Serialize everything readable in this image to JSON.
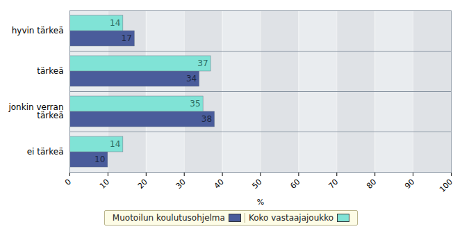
{
  "chart_data": {
    "type": "bar",
    "orientation": "horizontal",
    "categories": [
      "hyvin tärkeä",
      "tärkeä",
      "jonkin verran tärkeä",
      "ei tärkeä"
    ],
    "series": [
      {
        "name": "Muotoilun koulutusohjelma",
        "color": "#4a5c9b",
        "values": [
          17,
          34,
          38,
          10
        ]
      },
      {
        "name": "Koko vastaajajoukko",
        "color": "#80e3d6",
        "values": [
          14,
          37,
          35,
          14
        ]
      }
    ],
    "xlabel": "%",
    "xlim": [
      0,
      100
    ],
    "xticks": [
      0,
      10,
      20,
      30,
      40,
      50,
      60,
      70,
      80,
      90,
      100
    ],
    "grid": true,
    "data_labels": true,
    "legend": "bottom"
  }
}
